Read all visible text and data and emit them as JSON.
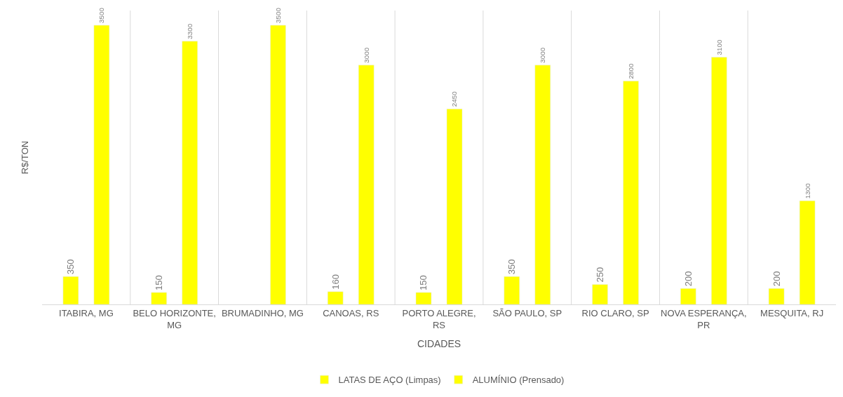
{
  "chart_data": {
    "type": "bar",
    "xlabel": "CIDADES",
    "ylabel": "R$/TON",
    "categories": [
      "ITABIRA, MG",
      "BELO HORIZONTE, MG",
      "BRUMADINHO, MG",
      "CANOAS, RS",
      "PORTO ALEGRE, RS",
      "SÃO PAULO, SP",
      "RIO CLARO, SP",
      "NOVA ESPERANÇA, PR",
      "MESQUITA, RJ"
    ],
    "series": [
      {
        "name": "LATAS DE AÇO (Limpas)",
        "color": "#ffff00",
        "values": [
          350,
          150,
          null,
          160,
          150,
          350,
          250,
          200,
          200
        ]
      },
      {
        "name": "ALUMÍNIO (Prensado)",
        "color": "#ffff00",
        "values": [
          3500,
          3300,
          3500,
          3000,
          2450,
          3000,
          2800,
          3100,
          1300
        ]
      }
    ],
    "data_labels": true,
    "grid": "x",
    "legend": "bottom",
    "tick_labels": "x"
  }
}
